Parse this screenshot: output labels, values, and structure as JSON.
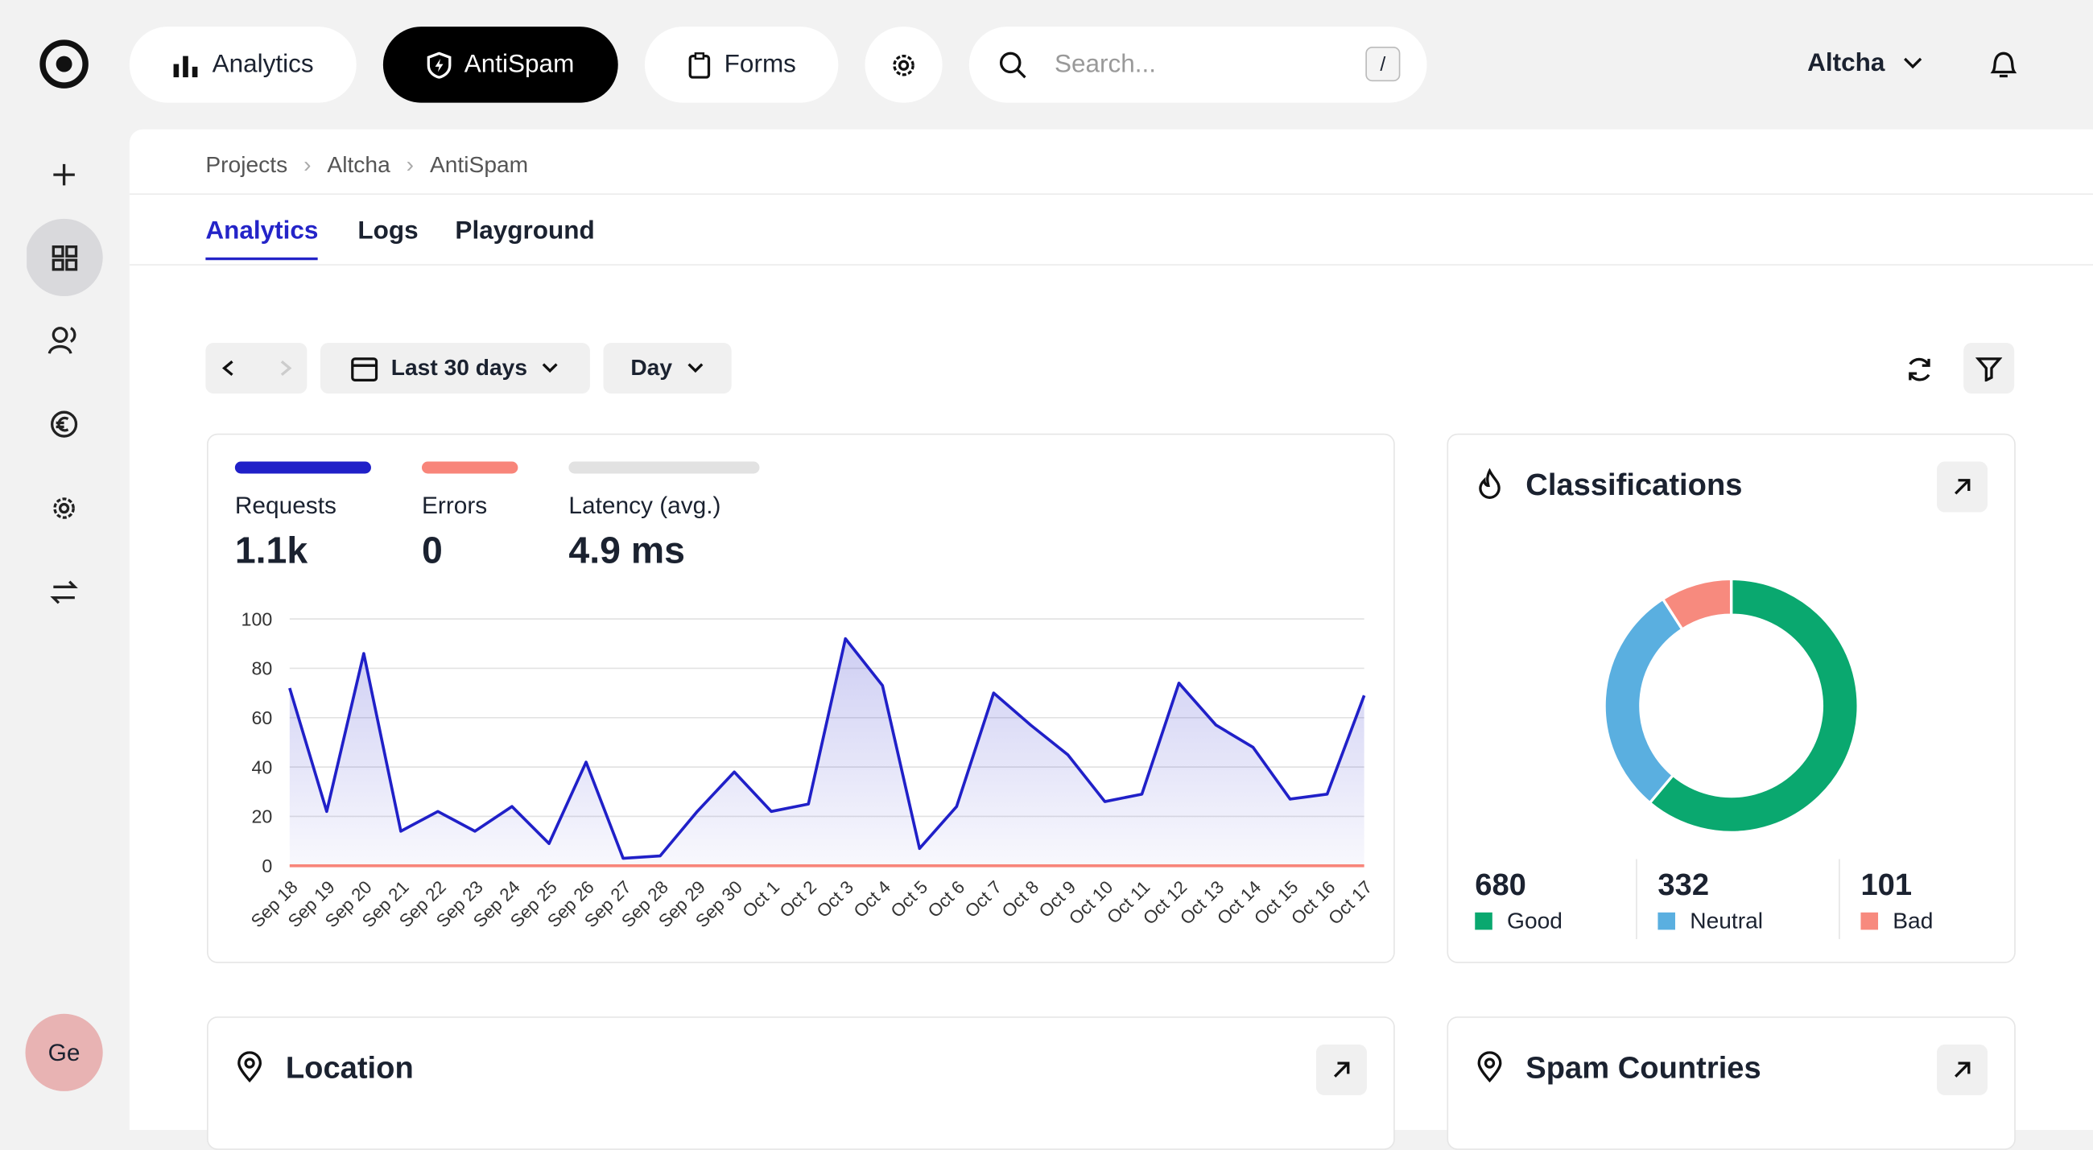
{
  "nav": {
    "items": [
      "Analytics",
      "AntiSpam",
      "Forms"
    ],
    "search_placeholder": "Search...",
    "search_key": "/",
    "user": "Altcha",
    "avatar": "Ge"
  },
  "breadcrumbs": [
    "Projects",
    "Altcha",
    "AntiSpam"
  ],
  "tabs": [
    "Analytics",
    "Logs",
    "Playground"
  ],
  "toolbar": {
    "range": "Last 30 days",
    "interval": "Day"
  },
  "metrics": [
    {
      "name": "Requests",
      "color": "#2020c8",
      "value": "1.1k"
    },
    {
      "name": "Errors",
      "color": "#f8857a",
      "value": "0"
    },
    {
      "name": "Latency (avg.)",
      "color": "#e2e2e2",
      "value": "4.9 ms"
    }
  ],
  "cards": {
    "classifications": "Classifications",
    "location": "Location",
    "spam_countries": "Spam Countries"
  },
  "chart_data": [
    {
      "type": "line",
      "categories": [
        "Sep 18",
        "Sep 19",
        "Sep 20",
        "Sep 21",
        "Sep 22",
        "Sep 23",
        "Sep 24",
        "Sep 25",
        "Sep 26",
        "Sep 27",
        "Sep 28",
        "Sep 29",
        "Sep 30",
        "Oct 1",
        "Oct 2",
        "Oct 3",
        "Oct 4",
        "Oct 5",
        "Oct 6",
        "Oct 7",
        "Oct 8",
        "Oct 9",
        "Oct 10",
        "Oct 11",
        "Oct 12",
        "Oct 13",
        "Oct 14",
        "Oct 15",
        "Oct 16",
        "Oct 17"
      ],
      "series": [
        {
          "name": "Requests",
          "color": "#2020c8",
          "values": [
            72,
            22,
            86,
            14,
            22,
            14,
            24,
            9,
            42,
            3,
            4,
            22,
            38,
            22,
            25,
            92,
            73,
            7,
            24,
            70,
            57,
            45,
            26,
            29,
            74,
            57,
            48,
            27,
            29,
            69
          ]
        },
        {
          "name": "Errors",
          "color": "#f8857a",
          "values": [
            0,
            0,
            0,
            0,
            0,
            0,
            0,
            0,
            0,
            0,
            0,
            0,
            0,
            0,
            0,
            0,
            0,
            0,
            0,
            0,
            0,
            0,
            0,
            0,
            0,
            0,
            0,
            0,
            0,
            0
          ]
        }
      ],
      "ylim": [
        0,
        100
      ],
      "yticks": [
        0,
        20,
        40,
        60,
        80,
        100
      ],
      "grid": true
    },
    {
      "type": "pie",
      "categories": [
        "Good",
        "Neutral",
        "Bad"
      ],
      "values": [
        680,
        332,
        101
      ],
      "colors": [
        "#0aa86f",
        "#5aafe0",
        "#f78a7e"
      ]
    }
  ]
}
